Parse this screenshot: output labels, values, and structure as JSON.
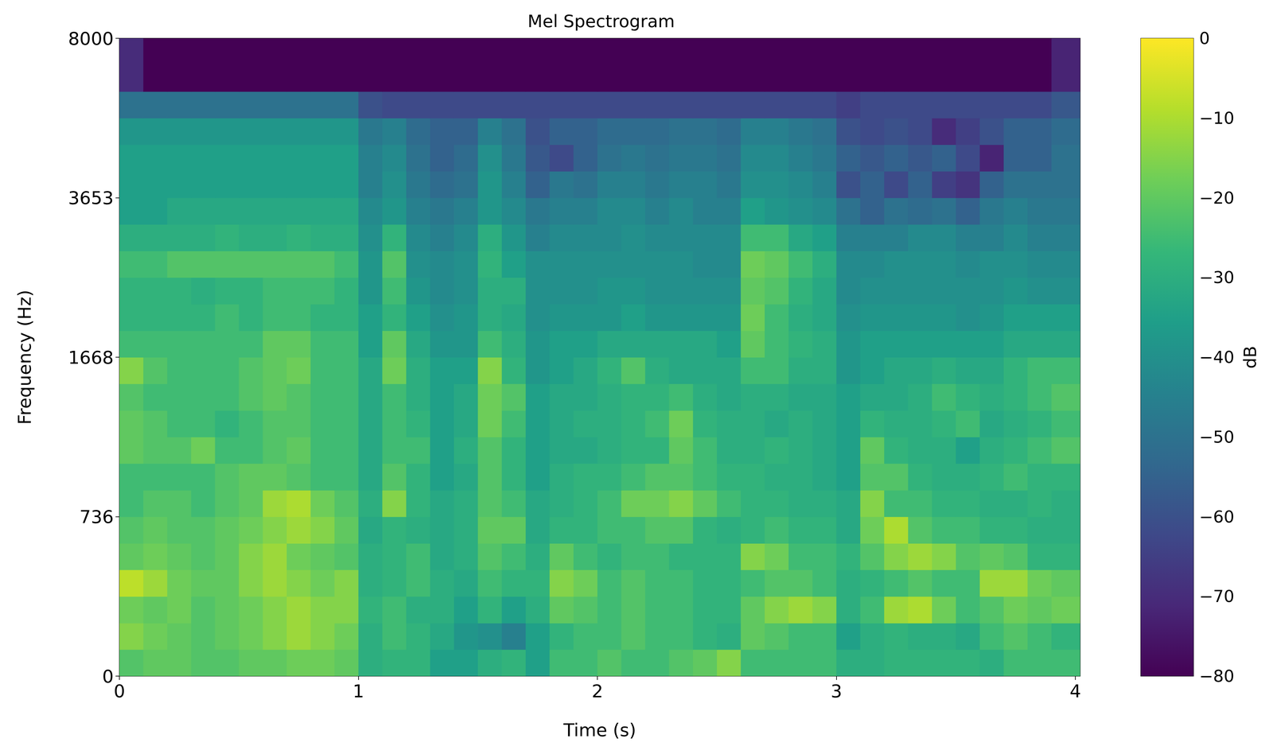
{
  "chart_data": {
    "type": "heatmap",
    "title": "Mel Spectrogram",
    "x_label": "Time (s)",
    "y_label": "Frequency (Hz)",
    "xlim": [
      0,
      4.02
    ],
    "xticks": [
      0,
      1,
      2,
      3,
      4
    ],
    "ylim": [
      0,
      8000
    ],
    "yticks": [
      0,
      736,
      1668,
      3653,
      8000
    ],
    "time_edges": [
      0,
      0.1,
      0.2,
      0.3,
      0.4,
      0.5,
      0.6,
      0.7,
      0.8,
      0.9,
      1.0,
      1.1,
      1.2,
      1.3,
      1.4,
      1.5,
      1.6,
      1.7,
      1.8,
      1.9,
      2.0,
      2.1,
      2.2,
      2.3,
      2.4,
      2.5,
      2.6,
      2.7,
      2.8,
      2.9,
      3.0,
      3.1,
      3.2,
      3.3,
      3.4,
      3.5,
      3.6,
      3.7,
      3.8,
      3.9,
      4.02
    ],
    "freq_edges": [
      0,
      123,
      245,
      368,
      491,
      613,
      736,
      891,
      1047,
      1202,
      1357,
      1513,
      1668,
      1999,
      2330,
      2661,
      2991,
      3322,
      3653,
      4378,
      5102,
      5827,
      6551,
      7276,
      8000
    ],
    "values": [
      [
        -22,
        -20,
        -20,
        -22,
        -22,
        -20,
        -20,
        -18,
        -18,
        -20,
        -30,
        -28,
        -28,
        -35,
        -35,
        -30,
        -28,
        -35,
        -25,
        -25,
        -22,
        -25,
        -25,
        -22,
        -20,
        -15,
        -25,
        -25,
        -25,
        -25,
        -30,
        -30,
        -28,
        -28,
        -28,
        -28,
        -30,
        -25,
        -25,
        -25
      ],
      [
        -15,
        -18,
        -20,
        -22,
        -20,
        -18,
        -15,
        -12,
        -15,
        -18,
        -30,
        -25,
        -28,
        -32,
        -38,
        -40,
        -45,
        -35,
        -28,
        -25,
        -25,
        -22,
        -25,
        -25,
        -28,
        -30,
        -20,
        -22,
        -25,
        -25,
        -35,
        -30,
        -28,
        -30,
        -30,
        -32,
        -25,
        -22,
        -25,
        -28
      ],
      [
        -18,
        -20,
        -18,
        -22,
        -20,
        -18,
        -15,
        -12,
        -15,
        -15,
        -28,
        -25,
        -30,
        -30,
        -35,
        -28,
        -35,
        -30,
        -20,
        -22,
        -25,
        -22,
        -25,
        -25,
        -28,
        -28,
        -20,
        -15,
        -12,
        -15,
        -30,
        -25,
        -12,
        -10,
        -18,
        -25,
        -22,
        -18,
        -20,
        -18
      ],
      [
        -8,
        -12,
        -18,
        -20,
        -20,
        -15,
        -12,
        -15,
        -18,
        -15,
        -30,
        -28,
        -25,
        -30,
        -32,
        -25,
        -28,
        -28,
        -15,
        -18,
        -25,
        -22,
        -25,
        -25,
        -28,
        -28,
        -25,
        -22,
        -22,
        -25,
        -30,
        -28,
        -25,
        -22,
        -25,
        -25,
        -12,
        -12,
        -18,
        -20
      ],
      [
        -20,
        -18,
        -20,
        -22,
        -20,
        -15,
        -12,
        -18,
        -20,
        -22,
        -30,
        -28,
        -25,
        -32,
        -30,
        -22,
        -25,
        -30,
        -20,
        -25,
        -28,
        -25,
        -25,
        -28,
        -28,
        -28,
        -15,
        -18,
        -25,
        -25,
        -28,
        -22,
        -15,
        -12,
        -15,
        -22,
        -20,
        -22,
        -28,
        -28
      ],
      [
        -22,
        -20,
        -22,
        -22,
        -20,
        -18,
        -15,
        -12,
        -15,
        -20,
        -32,
        -28,
        -30,
        -32,
        -30,
        -20,
        -20,
        -32,
        -28,
        -28,
        -25,
        -25,
        -22,
        -22,
        -28,
        -30,
        -28,
        -25,
        -28,
        -28,
        -32,
        -18,
        -10,
        -22,
        -25,
        -25,
        -28,
        -28,
        -30,
        -30
      ],
      [
        -25,
        -22,
        -22,
        -25,
        -22,
        -20,
        -12,
        -10,
        -18,
        -22,
        -30,
        -15,
        -28,
        -32,
        -30,
        -22,
        -25,
        -32,
        -30,
        -28,
        -25,
        -18,
        -18,
        -15,
        -20,
        -25,
        -28,
        -28,
        -30,
        -30,
        -32,
        -15,
        -25,
        -25,
        -28,
        -28,
        -30,
        -30,
        -28,
        -30
      ],
      [
        -25,
        -25,
        -25,
        -25,
        -22,
        -20,
        -20,
        -22,
        -25,
        -25,
        -32,
        -22,
        -28,
        -35,
        -32,
        -22,
        -28,
        -35,
        -30,
        -28,
        -28,
        -25,
        -22,
        -22,
        -25,
        -28,
        -28,
        -30,
        -30,
        -32,
        -35,
        -22,
        -22,
        -28,
        -30,
        -30,
        -28,
        -25,
        -28,
        -28
      ],
      [
        -20,
        -22,
        -22,
        -18,
        -25,
        -25,
        -22,
        -20,
        -25,
        -25,
        -32,
        -25,
        -25,
        -35,
        -30,
        -22,
        -28,
        -35,
        -32,
        -32,
        -30,
        -28,
        -28,
        -20,
        -25,
        -30,
        -30,
        -28,
        -30,
        -32,
        -35,
        -20,
        -28,
        -30,
        -30,
        -35,
        -30,
        -28,
        -25,
        -22
      ],
      [
        -20,
        -22,
        -25,
        -25,
        -28,
        -25,
        -22,
        -22,
        -25,
        -25,
        -32,
        -25,
        -28,
        -35,
        -32,
        -18,
        -25,
        -35,
        -32,
        -30,
        -30,
        -28,
        -25,
        -18,
        -28,
        -30,
        -30,
        -32,
        -30,
        -32,
        -35,
        -28,
        -30,
        -30,
        -28,
        -25,
        -32,
        -30,
        -28,
        -25
      ],
      [
        -22,
        -25,
        -25,
        -25,
        -25,
        -22,
        -20,
        -22,
        -25,
        -25,
        -32,
        -25,
        -30,
        -35,
        -32,
        -18,
        -22,
        -35,
        -32,
        -32,
        -30,
        -28,
        -28,
        -25,
        -30,
        -32,
        -30,
        -30,
        -32,
        -32,
        -35,
        -32,
        -32,
        -30,
        -25,
        -28,
        -30,
        -28,
        -25,
        -22
      ],
      [
        -15,
        -22,
        -25,
        -25,
        -25,
        -22,
        -20,
        -18,
        -25,
        -25,
        -32,
        -18,
        -30,
        -35,
        -35,
        -15,
        -28,
        -38,
        -35,
        -32,
        -28,
        -22,
        -30,
        -32,
        -32,
        -32,
        -25,
        -25,
        -30,
        -30,
        -38,
        -35,
        -32,
        -32,
        -30,
        -32,
        -32,
        -28,
        -25,
        -25
      ],
      [
        -25,
        -25,
        -25,
        -25,
        -25,
        -25,
        -20,
        -20,
        -25,
        -25,
        -35,
        -20,
        -32,
        -38,
        -38,
        -25,
        -30,
        -38,
        -35,
        -35,
        -32,
        -32,
        -32,
        -32,
        -32,
        -35,
        -20,
        -25,
        -28,
        -30,
        -38,
        -35,
        -35,
        -35,
        -35,
        -35,
        -35,
        -32,
        -32,
        -32
      ],
      [
        -28,
        -28,
        -28,
        -28,
        -25,
        -28,
        -25,
        -25,
        -28,
        -28,
        -35,
        -28,
        -35,
        -40,
        -38,
        -30,
        -32,
        -40,
        -38,
        -38,
        -38,
        -35,
        -38,
        -38,
        -38,
        -38,
        -18,
        -25,
        -30,
        -32,
        -40,
        -38,
        -38,
        -38,
        -38,
        -40,
        -38,
        -35,
        -35,
        -35
      ],
      [
        -28,
        -28,
        -28,
        -30,
        -28,
        -28,
        -25,
        -25,
        -25,
        -28,
        -38,
        -25,
        -38,
        -42,
        -40,
        -30,
        -30,
        -40,
        -40,
        -40,
        -38,
        -38,
        -40,
        -40,
        -40,
        -40,
        -20,
        -22,
        -28,
        -32,
        -42,
        -40,
        -40,
        -40,
        -40,
        -40,
        -40,
        -38,
        -40,
        -40
      ],
      [
        -25,
        -25,
        -22,
        -22,
        -22,
        -22,
        -22,
        -22,
        -22,
        -25,
        -38,
        -22,
        -40,
        -42,
        -40,
        -28,
        -35,
        -40,
        -40,
        -40,
        -40,
        -40,
        -40,
        -40,
        -42,
        -42,
        -18,
        -20,
        -25,
        -30,
        -42,
        -42,
        -40,
        -40,
        -40,
        -42,
        -40,
        -40,
        -42,
        -42
      ],
      [
        -30,
        -30,
        -30,
        -30,
        -28,
        -30,
        -30,
        -28,
        -30,
        -30,
        -40,
        -28,
        -42,
        -45,
        -42,
        -30,
        -38,
        -45,
        -42,
        -42,
        -42,
        -40,
        -42,
        -42,
        -42,
        -42,
        -25,
        -25,
        -32,
        -35,
        -45,
        -45,
        -45,
        -42,
        -42,
        -45,
        -45,
        -42,
        -45,
        -45
      ],
      [
        -35,
        -35,
        -32,
        -32,
        -32,
        -32,
        -32,
        -32,
        -32,
        -32,
        -42,
        -38,
        -45,
        -48,
        -45,
        -38,
        -42,
        -48,
        -45,
        -45,
        -42,
        -42,
        -45,
        -42,
        -45,
        -45,
        -35,
        -38,
        -40,
        -42,
        -50,
        -55,
        -50,
        -52,
        -50,
        -55,
        -48,
        -45,
        -48,
        -48
      ],
      [
        -35,
        -35,
        -35,
        -35,
        -35,
        -35,
        -35,
        -35,
        -35,
        -35,
        -45,
        -40,
        -48,
        -52,
        -50,
        -38,
        -45,
        -55,
        -48,
        -50,
        -45,
        -45,
        -48,
        -45,
        -45,
        -48,
        -40,
        -40,
        -42,
        -45,
        -60,
        -55,
        -62,
        -55,
        -65,
        -68,
        -55,
        -50,
        -50,
        -50
      ],
      [
        -35,
        -35,
        -35,
        -35,
        -35,
        -35,
        -35,
        -35,
        -35,
        -35,
        -45,
        -42,
        -50,
        -55,
        -52,
        -40,
        -48,
        -58,
        -62,
        -55,
        -50,
        -48,
        -50,
        -48,
        -48,
        -50,
        -42,
        -42,
        -45,
        -48,
        -55,
        -58,
        -55,
        -58,
        -55,
        -62,
        -72,
        -55,
        -55,
        -50
      ],
      [
        -38,
        -38,
        -38,
        -38,
        -38,
        -38,
        -38,
        -38,
        -38,
        -38,
        -48,
        -45,
        -52,
        -55,
        -55,
        -45,
        -50,
        -60,
        -55,
        -55,
        -52,
        -52,
        -52,
        -50,
        -50,
        -52,
        -45,
        -45,
        -48,
        -50,
        -60,
        -62,
        -60,
        -62,
        -70,
        -65,
        -60,
        -55,
        -55,
        -52
      ],
      [
        -50,
        -50,
        -50,
        -50,
        -50,
        -50,
        -50,
        -50,
        -50,
        -50,
        -60,
        -62,
        -62,
        -62,
        -62,
        -62,
        -62,
        -62,
        -62,
        -62,
        -62,
        -62,
        -62,
        -62,
        -62,
        -62,
        -62,
        -62,
        -62,
        -62,
        -65,
        -62,
        -62,
        -62,
        -62,
        -62,
        -62,
        -62,
        -62,
        -58
      ],
      [
        -70,
        -80,
        -80,
        -80,
        -80,
        -80,
        -80,
        -80,
        -80,
        -80,
        -80,
        -80,
        -80,
        -80,
        -80,
        -80,
        -80,
        -80,
        -80,
        -80,
        -80,
        -80,
        -80,
        -80,
        -80,
        -80,
        -80,
        -80,
        -80,
        -80,
        -80,
        -80,
        -80,
        -80,
        -80,
        -80,
        -80,
        -80,
        -80,
        -72
      ],
      [
        -70,
        -80,
        -80,
        -80,
        -80,
        -80,
        -80,
        -80,
        -80,
        -80,
        -80,
        -80,
        -80,
        -80,
        -80,
        -80,
        -80,
        -80,
        -80,
        -80,
        -80,
        -80,
        -80,
        -80,
        -80,
        -80,
        -80,
        -80,
        -80,
        -80,
        -80,
        -80,
        -80,
        -80,
        -80,
        -80,
        -80,
        -80,
        -80,
        -72
      ]
    ],
    "colorbar": {
      "range": [
        -80,
        0
      ],
      "ticks": [
        0,
        {
          "value": -10,
          "label": "−10"
        },
        {
          "value": -20,
          "label": "−20"
        },
        {
          "value": -30,
          "label": "−30"
        },
        {
          "value": -40,
          "label": "−40"
        },
        {
          "value": -50,
          "label": "−50"
        },
        {
          "value": -60,
          "label": "−60"
        },
        {
          "value": -70,
          "label": "−70"
        },
        {
          "value": -80,
          "label": "−80"
        }
      ],
      "label": "dB"
    }
  }
}
